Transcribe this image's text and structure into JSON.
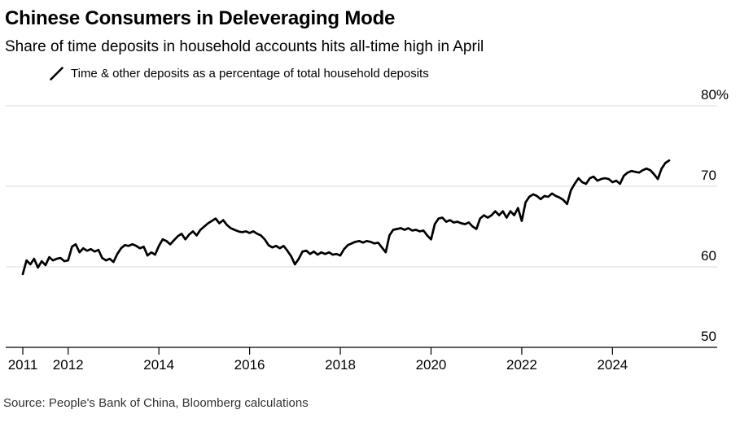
{
  "header": {
    "title": "Chinese Consumers in Deleveraging Mode",
    "subtitle": "Share of time deposits in household accounts hits all-time high in April"
  },
  "legend": {
    "marker": "slash-icon",
    "label": "Time & other deposits as a percentage of total household deposits"
  },
  "footer": {
    "source": "Source: People's Bank of China, Bloomberg calculations"
  },
  "colors": {
    "background": "#ffffff",
    "text": "#000000",
    "grid": "#d9d9d9",
    "axis": "#000000",
    "line": "#000000",
    "source_text": "#333333"
  },
  "chart_data": {
    "type": "line",
    "title": "Chinese Consumers in Deleveraging Mode",
    "subtitle": "Share of time deposits in household accounts hits all-time high in April",
    "unit": "percent",
    "grid": "horizontal",
    "legend_position": "top-left",
    "ylim": [
      50,
      80
    ],
    "y_ticks": [
      {
        "value": 80,
        "label": "80%"
      },
      {
        "value": 70,
        "label": "70"
      },
      {
        "value": 60,
        "label": "60"
      },
      {
        "value": 50,
        "label": "50"
      }
    ],
    "x_ticks": [
      {
        "value": 2011,
        "label": "2011"
      },
      {
        "value": 2012,
        "label": "2012"
      },
      {
        "value": 2014,
        "label": "2014"
      },
      {
        "value": 2016,
        "label": "2016"
      },
      {
        "value": 2018,
        "label": "2018"
      },
      {
        "value": 2020,
        "label": "2020"
      },
      {
        "value": 2022,
        "label": "2022"
      },
      {
        "value": 2024,
        "label": "2024"
      }
    ],
    "series": [
      {
        "name": "Time & other deposits as a percentage of total household deposits",
        "color": "#000000",
        "frequency": "monthly",
        "start": "2011-01",
        "end": "2025-04",
        "values": [
          59.1,
          60.8,
          60.3,
          61.0,
          59.9,
          60.7,
          60.2,
          61.2,
          60.8,
          61.0,
          61.1,
          60.7,
          60.8,
          62.5,
          62.8,
          61.8,
          62.3,
          62.0,
          62.2,
          61.9,
          62.1,
          61.1,
          60.8,
          61.0,
          60.6,
          61.6,
          62.3,
          62.7,
          62.6,
          62.8,
          62.6,
          62.3,
          62.5,
          61.4,
          61.8,
          61.5,
          62.6,
          63.4,
          63.2,
          62.8,
          63.3,
          63.8,
          64.1,
          63.4,
          64.0,
          64.4,
          63.9,
          64.6,
          65.0,
          65.4,
          65.7,
          66.0,
          65.4,
          65.8,
          65.2,
          64.8,
          64.6,
          64.4,
          64.3,
          64.4,
          64.2,
          64.4,
          64.1,
          63.9,
          63.4,
          62.7,
          62.4,
          62.6,
          62.3,
          62.6,
          62.0,
          61.3,
          60.3,
          61.0,
          61.9,
          62.0,
          61.6,
          61.9,
          61.5,
          61.8,
          61.6,
          61.8,
          61.5,
          61.6,
          61.4,
          62.2,
          62.7,
          62.9,
          63.1,
          63.2,
          63.0,
          63.2,
          63.1,
          62.9,
          63.0,
          62.4,
          61.8,
          63.9,
          64.6,
          64.7,
          64.8,
          64.6,
          64.8,
          64.5,
          64.6,
          64.4,
          64.5,
          63.9,
          63.4,
          65.3,
          66.0,
          66.1,
          65.6,
          65.8,
          65.5,
          65.6,
          65.4,
          65.3,
          65.5,
          65.0,
          64.7,
          66.0,
          66.4,
          66.1,
          66.4,
          66.9,
          66.4,
          66.9,
          66.1,
          66.9,
          66.4,
          67.3,
          65.7,
          68.0,
          68.7,
          69.0,
          68.8,
          68.4,
          68.8,
          68.7,
          69.1,
          68.8,
          68.6,
          68.3,
          67.8,
          69.5,
          70.3,
          71.0,
          70.5,
          70.3,
          71.0,
          71.2,
          70.7,
          70.9,
          71.0,
          70.9,
          70.5,
          70.7,
          70.3,
          71.3,
          71.7,
          71.9,
          71.8,
          71.7,
          72.0,
          72.2,
          72.0,
          71.5,
          70.9,
          72.2,
          72.9,
          73.2
        ]
      }
    ]
  }
}
